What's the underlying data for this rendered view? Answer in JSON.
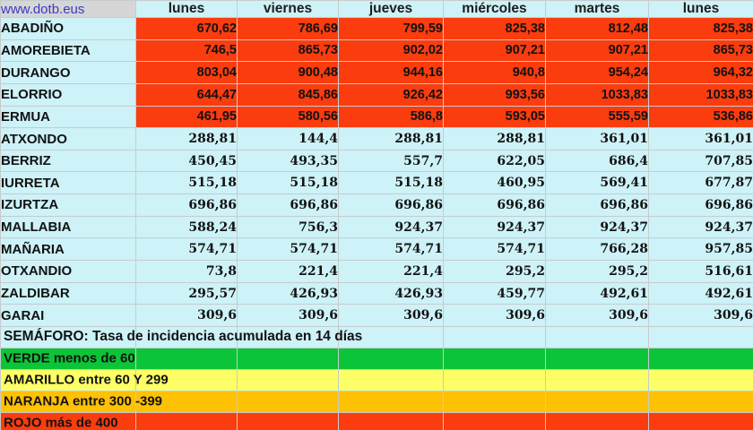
{
  "header": {
    "site_link": "www.dotb.eus",
    "day_columns": [
      "lunes",
      "viernes",
      "jueves",
      "miércoles",
      "martes",
      "lunes"
    ]
  },
  "municipalities": [
    {
      "name": "ABADIÑO",
      "level": "red",
      "values": [
        "670,62",
        "786,69",
        "799,59",
        "825,38",
        "812,48",
        "825,38"
      ]
    },
    {
      "name": "AMOREBIETA",
      "level": "red",
      "values": [
        "746,5",
        "865,73",
        "902,02",
        "907,21",
        "907,21",
        "865,73"
      ]
    },
    {
      "name": "DURANGO",
      "level": "red",
      "values": [
        "803,04",
        "900,48",
        "944,16",
        "940,8",
        "954,24",
        "964,32"
      ]
    },
    {
      "name": "ELORRIO",
      "level": "red",
      "values": [
        "644,47",
        "845,86",
        "926,42",
        "993,56",
        "1033,83",
        "1033,83"
      ]
    },
    {
      "name": "ERMUA",
      "level": "red",
      "values": [
        "461,95",
        "580,56",
        "586,8",
        "593,05",
        "555,59",
        "536,86"
      ]
    },
    {
      "name": "ATXONDO",
      "level": "default",
      "values": [
        "288,81",
        "144,4",
        "288,81",
        "288,81",
        "361,01",
        "361,01"
      ]
    },
    {
      "name": "BERRIZ",
      "level": "default",
      "values": [
        "450,45",
        "493,35",
        "557,7",
        "622,05",
        "686,4",
        "707,85"
      ]
    },
    {
      "name": "IURRETA",
      "level": "default",
      "values": [
        "515,18",
        "515,18",
        "515,18",
        "460,95",
        "569,41",
        "677,87"
      ]
    },
    {
      "name": "IZURTZA",
      "level": "default",
      "values": [
        "696,86",
        "696,86",
        "696,86",
        "696,86",
        "696,86",
        "696,86"
      ]
    },
    {
      "name": "MALLABIA",
      "level": "default",
      "values": [
        "588,24",
        "756,3",
        "924,37",
        "924,37",
        "924,37",
        "924,37"
      ]
    },
    {
      "name": "MAÑARIA",
      "level": "default",
      "values": [
        "574,71",
        "574,71",
        "574,71",
        "574,71",
        "766,28",
        "957,85"
      ]
    },
    {
      "name": "OTXANDIO",
      "level": "default",
      "values": [
        "73,8",
        "221,4",
        "221,4",
        "295,2",
        "295,2",
        "516,61"
      ]
    },
    {
      "name": "ZALDIBAR",
      "level": "default",
      "values": [
        "295,57",
        "426,93",
        "426,93",
        "459,77",
        "492,61",
        "492,61"
      ]
    },
    {
      "name": "GARAI",
      "level": "default",
      "values": [
        "309,6",
        "309,6",
        "309,6",
        "309,6",
        "309,6",
        "309,6"
      ]
    }
  ],
  "legend": {
    "title": "SEMÁFORO: Tasa de incidencia acumulada en 14 días",
    "items": [
      {
        "label": "VERDE menos de 60",
        "color": "#0cc437"
      },
      {
        "label": "AMARILLO entre 60 Y 299",
        "color": "#fdff66"
      },
      {
        "label": "NARANJA entre 300 -399",
        "color": "#ffc103"
      },
      {
        "label": "ROJO más de 400",
        "color": "#fb3c0e"
      }
    ]
  },
  "colors": {
    "alert_red": "#fb3c0e",
    "cell_cyan": "#cdf2f8",
    "link_cell_bg": "#d6d6d6",
    "link_text": "#3a3ac2",
    "gridline": "#c6cccd"
  }
}
